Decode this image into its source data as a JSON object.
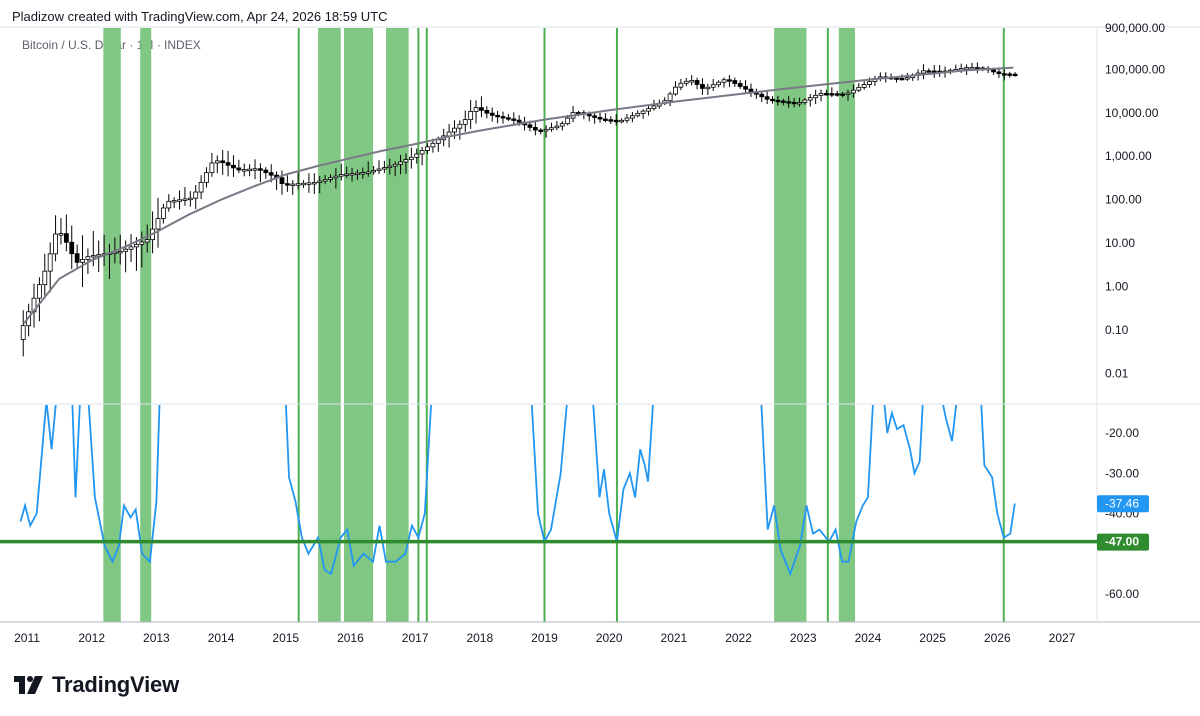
{
  "header": {
    "attribution": "Pladizow created with TradingView.com, Apr 24, 2026 18:59 UTC",
    "symbol_line": "Bitcoin / U.S. Dollar · 1M · INDEX"
  },
  "footer": {
    "brand": "TradingView"
  },
  "colors": {
    "highlight": "#81c784",
    "vline": "#4caf50",
    "oscillator": "#2196f3",
    "threshold": "#2e8b2e",
    "candle_up": "#ffffff",
    "candle_down": "#000000",
    "trend": "#787b86"
  },
  "chart_data": {
    "type": "candlestick",
    "log_scale": true,
    "x_ticks": [
      "2011",
      "2012",
      "2013",
      "2014",
      "2015",
      "2016",
      "2017",
      "2018",
      "2019",
      "2020",
      "2021",
      "2022",
      "2023",
      "2024",
      "2025",
      "2026",
      "2027"
    ],
    "price_ticks": [
      "900,000.00",
      "100,000.00",
      "10,000.00",
      "1,000.00",
      "100.00",
      "10.00",
      "1.00",
      "0.10",
      "0.01"
    ],
    "price_ylim": [
      0.003,
      900000
    ],
    "oscillator_ticks": [
      "-20.00",
      "-30.00",
      "-40.00",
      "-60.00"
    ],
    "oscillator_ylim": [
      -66,
      -13
    ],
    "oscillator_last_label": "-37.46",
    "threshold_label": "-47.00",
    "threshold_value": -47,
    "highlight_bands": [
      {
        "start": 2012.18,
        "end": 2012.45
      },
      {
        "start": 2012.75,
        "end": 2012.92
      },
      {
        "start": 2015.5,
        "end": 2015.85
      },
      {
        "start": 2015.9,
        "end": 2016.35
      },
      {
        "start": 2016.55,
        "end": 2016.9
      },
      {
        "start": 2022.55,
        "end": 2023.05
      },
      {
        "start": 2023.55,
        "end": 2023.8
      }
    ],
    "vertical_lines": [
      2015.2,
      2017.05,
      2017.18,
      2019.0,
      2020.12,
      2023.38,
      2026.1
    ],
    "trend_curve": [
      {
        "x": 2010.95,
        "y": 0.14
      },
      {
        "x": 2011.5,
        "y": 1.5
      },
      {
        "x": 2012.0,
        "y": 4
      },
      {
        "x": 2012.5,
        "y": 8
      },
      {
        "x": 2013.0,
        "y": 18
      },
      {
        "x": 2013.5,
        "y": 45
      },
      {
        "x": 2014.0,
        "y": 100
      },
      {
        "x": 2014.5,
        "y": 200
      },
      {
        "x": 2015.0,
        "y": 380
      },
      {
        "x": 2015.5,
        "y": 600
      },
      {
        "x": 2016.0,
        "y": 900
      },
      {
        "x": 2016.5,
        "y": 1350
      },
      {
        "x": 2017.0,
        "y": 1900
      },
      {
        "x": 2017.5,
        "y": 2800
      },
      {
        "x": 2018.0,
        "y": 3900
      },
      {
        "x": 2019.0,
        "y": 7000
      },
      {
        "x": 2020.0,
        "y": 11500
      },
      {
        "x": 2021.0,
        "y": 18000
      },
      {
        "x": 2022.0,
        "y": 27000
      },
      {
        "x": 2023.0,
        "y": 40000
      },
      {
        "x": 2024.0,
        "y": 58000
      },
      {
        "x": 2025.0,
        "y": 80000
      },
      {
        "x": 2025.5,
        "y": 95000
      },
      {
        "x": 2026.25,
        "y": 110000
      }
    ],
    "price_path": [
      {
        "x": 2010.9,
        "y": 0.06
      },
      {
        "x": 2011.1,
        "y": 0.35
      },
      {
        "x": 2011.35,
        "y": 3
      },
      {
        "x": 2011.5,
        "y": 20
      },
      {
        "x": 2011.6,
        "y": 15
      },
      {
        "x": 2011.8,
        "y": 3.5
      },
      {
        "x": 2012.0,
        "y": 5
      },
      {
        "x": 2012.5,
        "y": 6.5
      },
      {
        "x": 2012.9,
        "y": 12
      },
      {
        "x": 2013.2,
        "y": 90
      },
      {
        "x": 2013.6,
        "y": 110
      },
      {
        "x": 2013.9,
        "y": 700
      },
      {
        "x": 2014.0,
        "y": 800
      },
      {
        "x": 2014.3,
        "y": 480
      },
      {
        "x": 2014.6,
        "y": 520
      },
      {
        "x": 2014.9,
        "y": 320
      },
      {
        "x": 2015.0,
        "y": 220
      },
      {
        "x": 2015.5,
        "y": 250
      },
      {
        "x": 2015.9,
        "y": 380
      },
      {
        "x": 2016.3,
        "y": 430
      },
      {
        "x": 2016.7,
        "y": 620
      },
      {
        "x": 2017.0,
        "y": 970
      },
      {
        "x": 2017.4,
        "y": 2400
      },
      {
        "x": 2017.8,
        "y": 6400
      },
      {
        "x": 2017.95,
        "y": 14000
      },
      {
        "x": 2018.2,
        "y": 9000
      },
      {
        "x": 2018.6,
        "y": 6600
      },
      {
        "x": 2018.95,
        "y": 3700
      },
      {
        "x": 2019.3,
        "y": 5300
      },
      {
        "x": 2019.5,
        "y": 10800
      },
      {
        "x": 2019.9,
        "y": 7200
      },
      {
        "x": 2020.2,
        "y": 6400
      },
      {
        "x": 2020.6,
        "y": 11500
      },
      {
        "x": 2020.9,
        "y": 19000
      },
      {
        "x": 2021.1,
        "y": 45000
      },
      {
        "x": 2021.3,
        "y": 58000
      },
      {
        "x": 2021.5,
        "y": 35000
      },
      {
        "x": 2021.85,
        "y": 61000
      },
      {
        "x": 2022.1,
        "y": 38000
      },
      {
        "x": 2022.5,
        "y": 20000
      },
      {
        "x": 2022.95,
        "y": 16500
      },
      {
        "x": 2023.3,
        "y": 28000
      },
      {
        "x": 2023.7,
        "y": 27000
      },
      {
        "x": 2023.95,
        "y": 42000
      },
      {
        "x": 2024.2,
        "y": 68000
      },
      {
        "x": 2024.6,
        "y": 60000
      },
      {
        "x": 2024.9,
        "y": 93000
      },
      {
        "x": 2025.2,
        "y": 90000
      },
      {
        "x": 2025.6,
        "y": 112000
      },
      {
        "x": 2025.85,
        "y": 105000
      },
      {
        "x": 2026.05,
        "y": 80000
      },
      {
        "x": 2026.3,
        "y": 77000
      }
    ],
    "oscillator_series": [
      {
        "x": 2010.9,
        "y": -42
      },
      {
        "x": 2010.97,
        "y": -38
      },
      {
        "x": 2011.05,
        "y": -43
      },
      {
        "x": 2011.15,
        "y": -40
      },
      {
        "x": 2011.3,
        "y": -12
      },
      {
        "x": 2011.38,
        "y": -24
      },
      {
        "x": 2011.45,
        "y": -12
      },
      {
        "x": 2011.7,
        "y": -12
      },
      {
        "x": 2011.75,
        "y": -36
      },
      {
        "x": 2011.82,
        "y": -12
      },
      {
        "x": 2011.95,
        "y": -12
      },
      {
        "x": 2012.05,
        "y": -36
      },
      {
        "x": 2012.2,
        "y": -48
      },
      {
        "x": 2012.32,
        "y": -52
      },
      {
        "x": 2012.42,
        "y": -48
      },
      {
        "x": 2012.5,
        "y": -38
      },
      {
        "x": 2012.6,
        "y": -41
      },
      {
        "x": 2012.68,
        "y": -39
      },
      {
        "x": 2012.78,
        "y": -50
      },
      {
        "x": 2012.9,
        "y": -52
      },
      {
        "x": 2013.0,
        "y": -37
      },
      {
        "x": 2013.05,
        "y": -12
      },
      {
        "x": 2015.0,
        "y": -12
      },
      {
        "x": 2015.05,
        "y": -31
      },
      {
        "x": 2015.15,
        "y": -37
      },
      {
        "x": 2015.25,
        "y": -46
      },
      {
        "x": 2015.35,
        "y": -50
      },
      {
        "x": 2015.5,
        "y": -46
      },
      {
        "x": 2015.6,
        "y": -54
      },
      {
        "x": 2015.7,
        "y": -55
      },
      {
        "x": 2015.85,
        "y": -46
      },
      {
        "x": 2015.95,
        "y": -44
      },
      {
        "x": 2016.05,
        "y": -53
      },
      {
        "x": 2016.2,
        "y": -50
      },
      {
        "x": 2016.35,
        "y": -52
      },
      {
        "x": 2016.45,
        "y": -43
      },
      {
        "x": 2016.55,
        "y": -52
      },
      {
        "x": 2016.7,
        "y": -52
      },
      {
        "x": 2016.85,
        "y": -50
      },
      {
        "x": 2016.95,
        "y": -43
      },
      {
        "x": 2017.05,
        "y": -46
      },
      {
        "x": 2017.15,
        "y": -40
      },
      {
        "x": 2017.25,
        "y": -12
      },
      {
        "x": 2018.8,
        "y": -12
      },
      {
        "x": 2018.9,
        "y": -40
      },
      {
        "x": 2019.0,
        "y": -47
      },
      {
        "x": 2019.1,
        "y": -44
      },
      {
        "x": 2019.25,
        "y": -30
      },
      {
        "x": 2019.35,
        "y": -12
      },
      {
        "x": 2019.75,
        "y": -12
      },
      {
        "x": 2019.85,
        "y": -36
      },
      {
        "x": 2019.92,
        "y": -29
      },
      {
        "x": 2020.0,
        "y": -40
      },
      {
        "x": 2020.12,
        "y": -47
      },
      {
        "x": 2020.22,
        "y": -34
      },
      {
        "x": 2020.32,
        "y": -30
      },
      {
        "x": 2020.4,
        "y": -36
      },
      {
        "x": 2020.48,
        "y": -24
      },
      {
        "x": 2020.55,
        "y": -28
      },
      {
        "x": 2020.6,
        "y": -32
      },
      {
        "x": 2020.68,
        "y": -12
      },
      {
        "x": 2022.35,
        "y": -12
      },
      {
        "x": 2022.45,
        "y": -44
      },
      {
        "x": 2022.55,
        "y": -38
      },
      {
        "x": 2022.65,
        "y": -49
      },
      {
        "x": 2022.8,
        "y": -55
      },
      {
        "x": 2022.95,
        "y": -48
      },
      {
        "x": 2023.05,
        "y": -38
      },
      {
        "x": 2023.15,
        "y": -45
      },
      {
        "x": 2023.25,
        "y": -44
      },
      {
        "x": 2023.4,
        "y": -47
      },
      {
        "x": 2023.5,
        "y": -44
      },
      {
        "x": 2023.6,
        "y": -52
      },
      {
        "x": 2023.7,
        "y": -52
      },
      {
        "x": 2023.82,
        "y": -42
      },
      {
        "x": 2023.92,
        "y": -38
      },
      {
        "x": 2024.0,
        "y": -36
      },
      {
        "x": 2024.08,
        "y": -12
      },
      {
        "x": 2024.25,
        "y": -12
      },
      {
        "x": 2024.3,
        "y": -20
      },
      {
        "x": 2024.37,
        "y": -15
      },
      {
        "x": 2024.45,
        "y": -19
      },
      {
        "x": 2024.55,
        "y": -18
      },
      {
        "x": 2024.65,
        "y": -24
      },
      {
        "x": 2024.72,
        "y": -30
      },
      {
        "x": 2024.8,
        "y": -27
      },
      {
        "x": 2024.85,
        "y": -12
      },
      {
        "x": 2025.15,
        "y": -12
      },
      {
        "x": 2025.2,
        "y": -16
      },
      {
        "x": 2025.3,
        "y": -22
      },
      {
        "x": 2025.37,
        "y": -12
      },
      {
        "x": 2025.75,
        "y": -12
      },
      {
        "x": 2025.8,
        "y": -28
      },
      {
        "x": 2025.92,
        "y": -31
      },
      {
        "x": 2026.0,
        "y": -40
      },
      {
        "x": 2026.1,
        "y": -46
      },
      {
        "x": 2026.2,
        "y": -45
      },
      {
        "x": 2026.27,
        "y": -37.5
      }
    ]
  }
}
